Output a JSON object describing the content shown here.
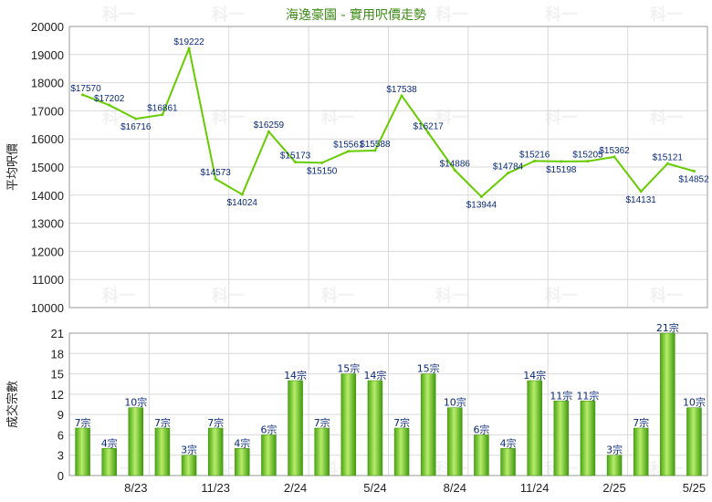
{
  "chart_data": [
    {
      "type": "line",
      "title": "海逸豪園 - 實用呎價走勢",
      "ylabel": "平均呎價",
      "ylim": [
        10000,
        20000
      ],
      "yticks": [
        "10000",
        "11000",
        "12000",
        "13000",
        "14000",
        "15000",
        "16000",
        "17000",
        "18000",
        "19000",
        "20000"
      ],
      "x_tick_labels": [
        "8/23",
        "11/23",
        "2/24",
        "5/24",
        "8/24",
        "11/24",
        "2/25",
        "5/25"
      ],
      "series": [
        {
          "values": [
            17570,
            17202,
            16716,
            16861,
            19222,
            14573,
            14024,
            16259,
            15173,
            15150,
            15561,
            15588,
            17538,
            16217,
            14886,
            13944,
            14784,
            15216,
            15198,
            15205,
            15362,
            14131,
            15121,
            14852
          ],
          "labels": [
            "$17570",
            "$17202",
            "$16716",
            "$16861",
            "$19222",
            "$14573",
            "$14024",
            "$16259",
            "$15173",
            "$15150",
            "$15561",
            "$15588",
            "$17538",
            "$16217",
            "$14886",
            "$13944",
            "$14784",
            "$15216",
            "$15198",
            "$15205",
            "$15362",
            "$14131",
            "$15121",
            "$14852"
          ]
        }
      ],
      "grid": true,
      "colors": {
        "line": "#66cc00",
        "axis": "#9a9a9a"
      }
    },
    {
      "type": "bar",
      "ylabel": "成交宗數",
      "ylim": [
        0,
        21
      ],
      "yticks": [
        "0",
        "3",
        "6",
        "9",
        "12",
        "15",
        "18",
        "21"
      ],
      "x_tick_labels": [
        "8/23",
        "11/23",
        "2/24",
        "5/24",
        "8/24",
        "11/24",
        "2/25",
        "5/25"
      ],
      "series": [
        {
          "values": [
            7,
            4,
            10,
            7,
            3,
            7,
            4,
            6,
            14,
            7,
            15,
            14,
            7,
            15,
            10,
            6,
            4,
            14,
            11,
            11,
            3,
            7,
            21,
            10
          ],
          "labels": [
            "7宗",
            "4宗",
            "10宗",
            "7宗",
            "3宗",
            "7宗",
            "4宗",
            "6宗",
            "14宗",
            "7宗",
            "15宗",
            "14宗",
            "7宗",
            "15宗",
            "10宗",
            "6宗",
            "4宗",
            "14宗",
            "11宗",
            "11宗",
            "3宗",
            "7宗",
            "21宗",
            "10宗"
          ]
        }
      ],
      "grid": true,
      "colors": {
        "bar_light": "#a6e05a",
        "bar_dark": "#3f9a0c"
      }
    }
  ],
  "watermark": "科一"
}
